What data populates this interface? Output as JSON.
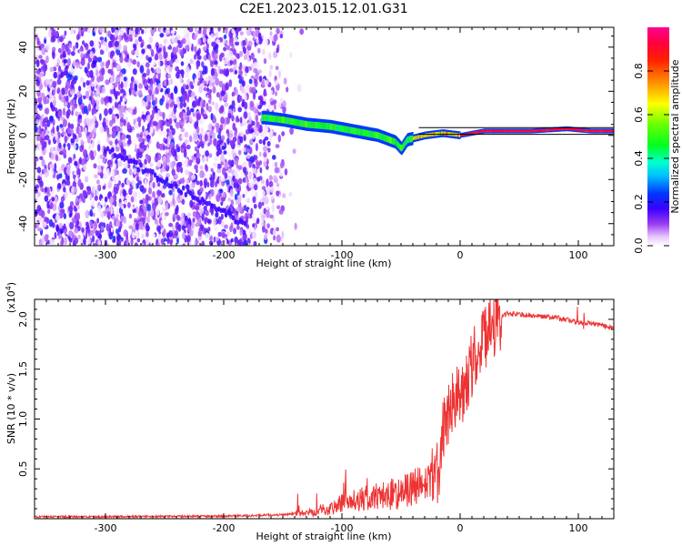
{
  "title": "C2E1.2023.015.12.01.G31",
  "chart_data": [
    {
      "type": "heatmap",
      "xlabel": "Height of straight line (km)",
      "ylabel": "Frequency (Hz)",
      "xlim": [
        -360,
        130
      ],
      "ylim": [
        -50,
        49
      ],
      "xticks": [
        -300,
        -200,
        -100,
        0,
        100
      ],
      "yticks": [
        -40,
        -20,
        0,
        20,
        40
      ],
      "colorbar": {
        "label": "Normalized spectral amplitude",
        "range": [
          0,
          1
        ],
        "ticks": [
          0.0,
          0.2,
          0.4,
          0.6,
          0.8
        ],
        "tick_labels": [
          "0.0",
          "0.2",
          "0.4",
          "0.6",
          "0.8"
        ]
      },
      "ridge": [
        {
          "x": -165,
          "y": 8
        },
        {
          "x": -150,
          "y": 7
        },
        {
          "x": -130,
          "y": 5
        },
        {
          "x": -110,
          "y": 4
        },
        {
          "x": -90,
          "y": 2
        },
        {
          "x": -70,
          "y": 0
        },
        {
          "x": -55,
          "y": -3
        },
        {
          "x": -50,
          "y": -6
        },
        {
          "x": -45,
          "y": -2
        },
        {
          "x": -30,
          "y": 0
        },
        {
          "x": -15,
          "y": 1
        },
        {
          "x": 0,
          "y": 0
        },
        {
          "x": 20,
          "y": 2
        },
        {
          "x": 60,
          "y": 2
        },
        {
          "x": 90,
          "y": 3
        },
        {
          "x": 110,
          "y": 2
        },
        {
          "x": 130,
          "y": 2
        }
      ]
    },
    {
      "type": "line",
      "xlabel": "Height of straight line (km)",
      "ylabel": "SNR (10 * v/v)",
      "yscale_label": "(x10",
      "yscale_exp": "4",
      "yscale_close": ")",
      "xlim": [
        -360,
        130
      ],
      "ylim": [
        0,
        2.2
      ],
      "xticks": [
        -300,
        -200,
        -100,
        0,
        100
      ],
      "yticks": [
        0.5,
        1.0,
        1.5,
        2.0
      ],
      "ytick_labels": [
        "0.5",
        "1.0",
        "1.5",
        "2.0"
      ],
      "color": "#ee3333",
      "series": [
        {
          "x": [
            -360,
            -300,
            -200,
            -150,
            -130,
            -110,
            -100,
            -90,
            -80,
            -70,
            -60,
            -50,
            -40,
            -30,
            -20,
            -15,
            -10,
            -5,
            0,
            10,
            20,
            30,
            40,
            60,
            80,
            100,
            110,
            120,
            130
          ],
          "y": [
            0.02,
            0.02,
            0.025,
            0.04,
            0.06,
            0.1,
            0.15,
            0.18,
            0.2,
            0.22,
            0.24,
            0.26,
            0.3,
            0.35,
            0.4,
            0.8,
            1.05,
            1.15,
            1.25,
            1.55,
            1.8,
            1.98,
            2.06,
            2.04,
            2.02,
            1.97,
            1.96,
            1.94,
            1.91
          ]
        }
      ]
    }
  ]
}
